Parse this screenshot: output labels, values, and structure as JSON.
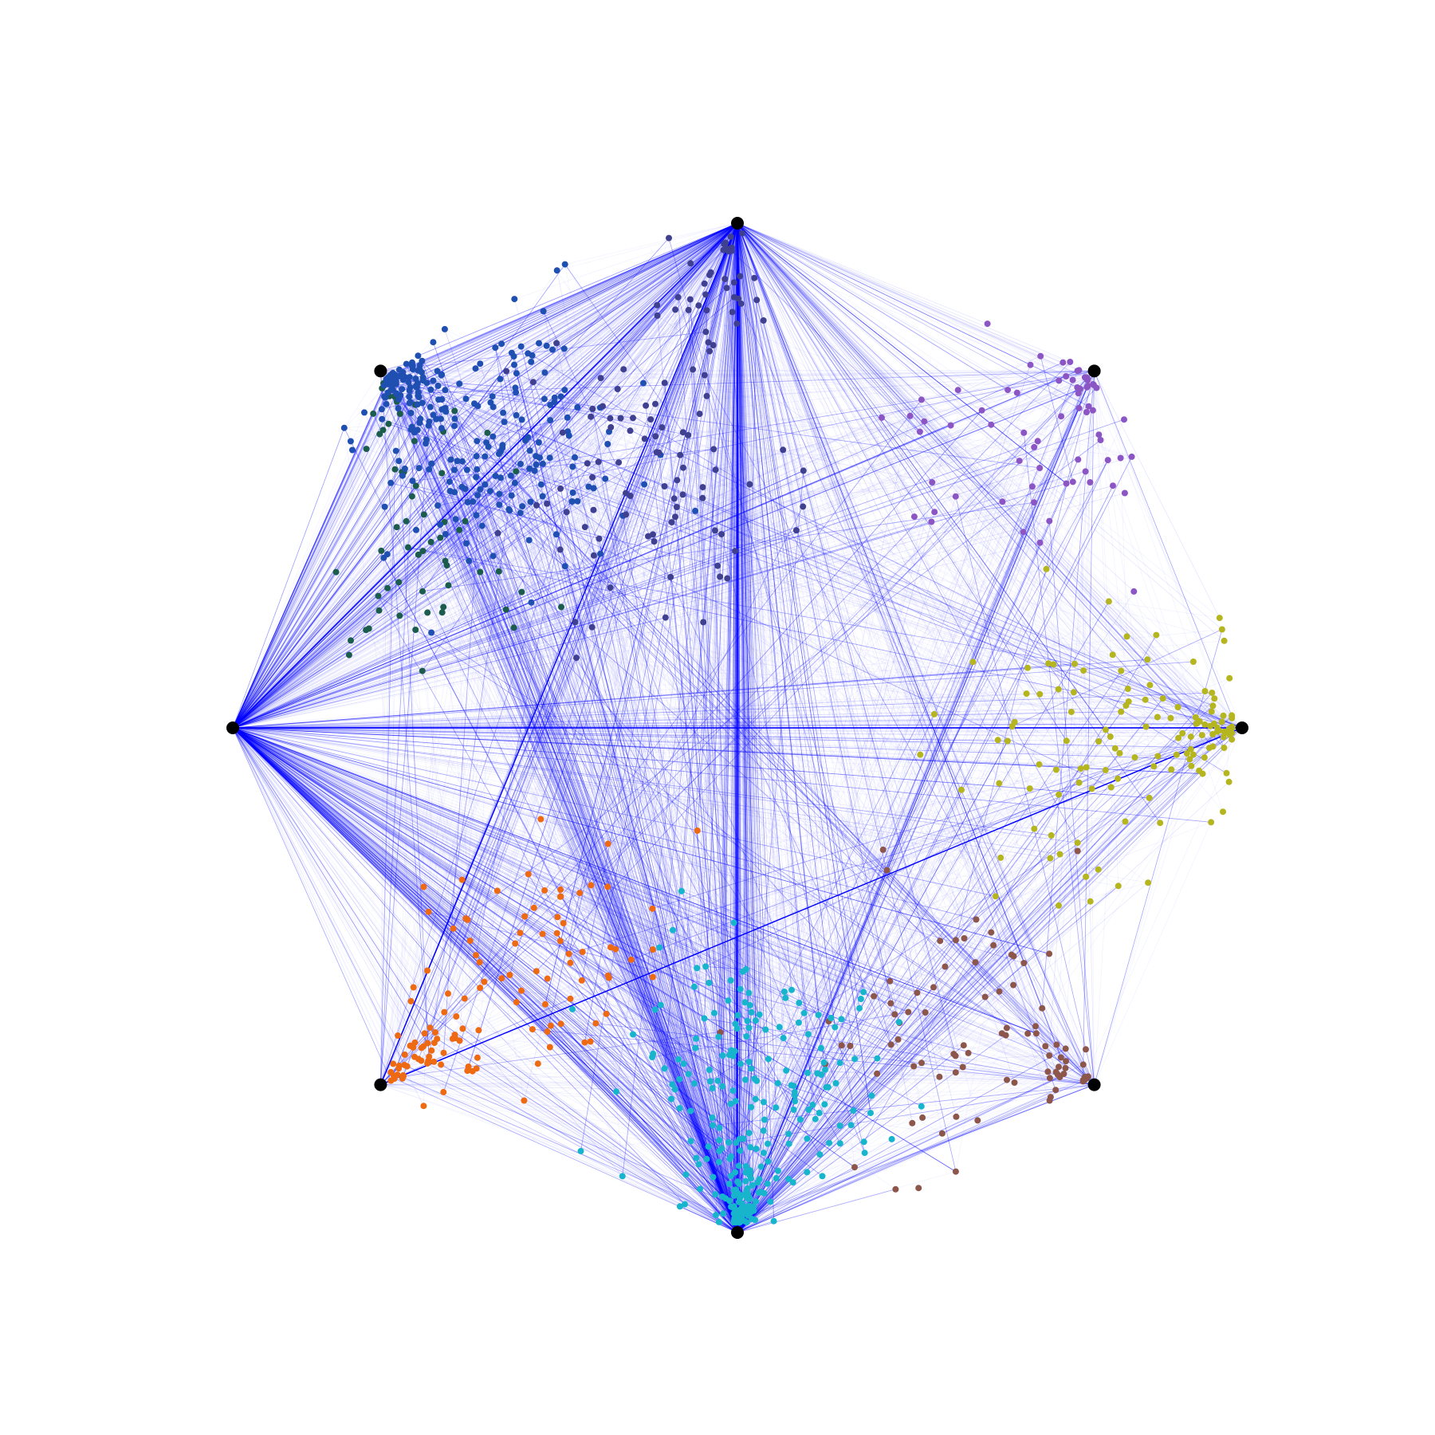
{
  "figure": {
    "type": "radial-anchor-network",
    "edge_color": "#0000ff",
    "anchor_color": "#000000",
    "background": "#ffffff"
  },
  "anchors": [
    {
      "id": "a0",
      "angle_deg": 90
    },
    {
      "id": "a1",
      "angle_deg": 45
    },
    {
      "id": "a2",
      "angle_deg": 0
    },
    {
      "id": "a3",
      "angle_deg": -45
    },
    {
      "id": "a4",
      "angle_deg": -90
    },
    {
      "id": "a5",
      "angle_deg": -135
    },
    {
      "id": "a6",
      "angle_deg": 180
    },
    {
      "id": "a7",
      "angle_deg": 135
    }
  ],
  "clusters": [
    {
      "name": "purple",
      "color": "#8c55c4",
      "center_u": 0.57,
      "center_v": 0.55,
      "spread": 0.22,
      "count": 70,
      "pull_anchor": "a1"
    },
    {
      "name": "olive",
      "color": "#b5b51f",
      "center_u": 0.7,
      "center_v": -0.05,
      "spread": 0.25,
      "count": 130,
      "pull_anchor": "a2"
    },
    {
      "name": "brown",
      "color": "#8c564b",
      "center_u": 0.45,
      "center_v": -0.6,
      "spread": 0.22,
      "count": 90,
      "pull_anchor": "a3"
    },
    {
      "name": "cyan",
      "color": "#17b5cc",
      "center_u": 0.05,
      "center_v": -0.7,
      "spread": 0.2,
      "count": 260,
      "pull_anchor": "a4"
    },
    {
      "name": "orange",
      "color": "#ee6a12",
      "center_u": -0.38,
      "center_v": -0.45,
      "spread": 0.2,
      "count": 120,
      "pull_anchor": "a5"
    },
    {
      "name": "dark-green",
      "color": "#1c5c4c",
      "center_u": -0.6,
      "center_v": 0.3,
      "spread": 0.2,
      "count": 60,
      "pull_anchor": "a7"
    },
    {
      "name": "steel-blue",
      "color": "#1f4fb0",
      "center_u": -0.48,
      "center_v": 0.55,
      "spread": 0.2,
      "count": 260,
      "pull_anchor": "a7"
    },
    {
      "name": "indigo",
      "color": "#404090",
      "center_u": -0.2,
      "center_v": 0.5,
      "spread": 0.25,
      "count": 120,
      "pull_anchor": "a0"
    }
  ],
  "edges": {
    "count": 4200,
    "opacity_faint": 0.05,
    "opacity_strong": 0.35,
    "dense_anchors": [
      "a0",
      "a6",
      "a4"
    ],
    "anchor_links": [
      [
        "a0",
        "a6"
      ],
      [
        "a6",
        "a2"
      ],
      [
        "a0",
        "a4"
      ],
      [
        "a5",
        "a0"
      ],
      [
        "a5",
        "a2"
      ]
    ]
  }
}
